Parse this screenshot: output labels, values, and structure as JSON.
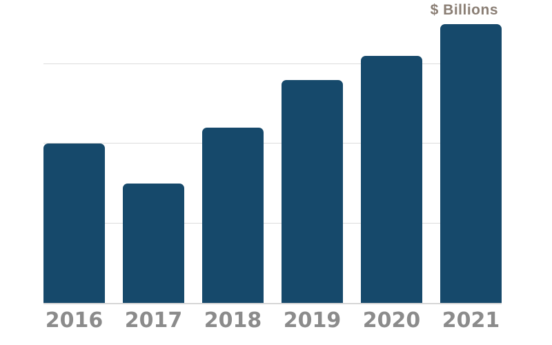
{
  "chart_data": {
    "type": "bar",
    "title": "",
    "xlabel": "",
    "ylabel": "",
    "unit_label": "$ Billions",
    "categories": [
      "2016",
      "2017",
      "2018",
      "2019",
      "2020",
      "2021"
    ],
    "values": [
      2.0,
      1.5,
      2.2,
      2.8,
      3.1,
      3.5
    ],
    "ylim": [
      0,
      3.8
    ],
    "gridline_values": [
      1,
      2,
      3
    ],
    "grid": "horizontal-only",
    "legend": "none",
    "y_tick_labels_visible": false,
    "colors": {
      "bar": "#16496B",
      "gridline": "#dcdcdc",
      "axis_line": "#d6d6d6",
      "x_tick_label": "#8b8b8b",
      "unit_label": "#8a7e74",
      "background": "#ffffff"
    }
  }
}
